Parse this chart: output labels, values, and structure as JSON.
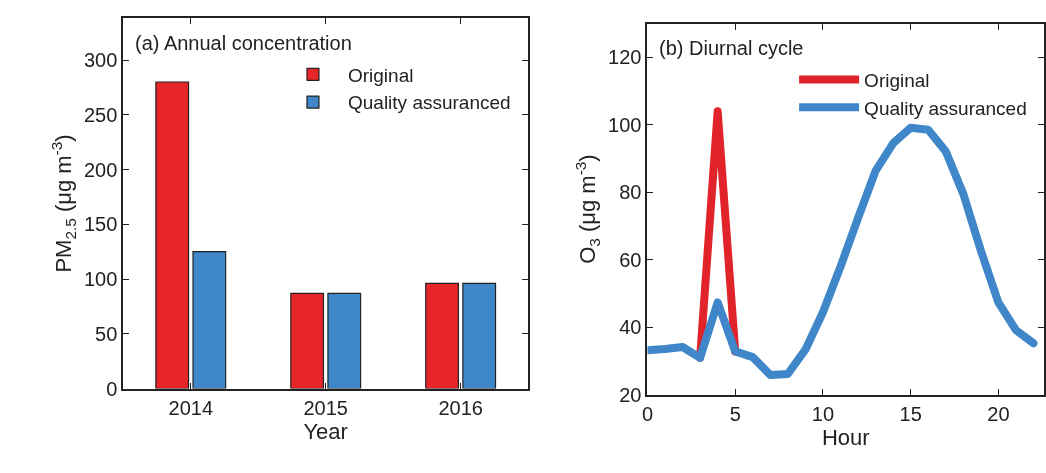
{
  "chart_data": [
    {
      "type": "bar",
      "title": "(a) Annual concentration",
      "xlabel": "Year",
      "ylabel": "PM$_{2.5}$ (μg m$^{-3}$)",
      "categories": [
        "2014",
        "2015",
        "2016"
      ],
      "series": [
        {
          "name": "Original",
          "color": "#e8262a",
          "values": [
            280,
            87,
            96
          ]
        },
        {
          "name": "Quality assuranced",
          "color": "#3f87c8",
          "values": [
            125,
            87,
            96
          ]
        }
      ],
      "ylim": [
        0,
        338
      ],
      "yticks": [
        0,
        50,
        100,
        150,
        200,
        250,
        300
      ],
      "legend": "top right"
    },
    {
      "type": "line",
      "title": "(b) Diurnal cycle",
      "xlabel": "Hour",
      "ylabel": "O$_{3}$ (μg m$^{-3}$)",
      "x": [
        0,
        1,
        2,
        3,
        4,
        5,
        6,
        7,
        8,
        9,
        10,
        11,
        12,
        13,
        14,
        15,
        16,
        17,
        18,
        19,
        20,
        21,
        22
      ],
      "series": [
        {
          "name": "Original",
          "color": "#e1242a",
          "values": [
            null,
            null,
            null,
            30.9,
            104,
            32.8,
            null,
            null,
            null,
            null,
            null,
            null,
            null,
            null,
            null,
            null,
            null,
            null,
            null,
            null,
            null,
            null,
            null
          ]
        },
        {
          "name": "Quality assuranced",
          "color": "#3f87c8",
          "values": [
            33.1,
            33.5,
            34.1,
            30.9,
            47.3,
            32.8,
            31.1,
            25.8,
            26.1,
            33.3,
            44.4,
            57.9,
            72.3,
            86.3,
            94.5,
            99.1,
            98.5,
            92.1,
            79.5,
            62.7,
            47.3,
            39.1,
            35.2
          ]
        }
      ],
      "xlim": [
        0,
        22.6
      ],
      "xticks": [
        0,
        5,
        10,
        15,
        20
      ],
      "ylim": [
        20,
        130
      ],
      "yticks": [
        20,
        40,
        60,
        80,
        100,
        120
      ],
      "legend": "top right",
      "marker": "none",
      "line_style": "solid"
    }
  ]
}
